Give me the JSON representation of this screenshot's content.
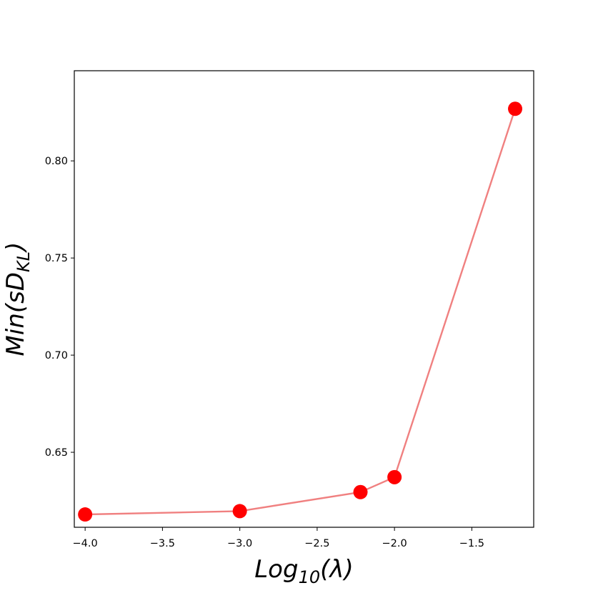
{
  "chart_data": {
    "type": "line",
    "title": "",
    "xlabel": {
      "base": "Log",
      "sub": "10",
      "rest": "(λ)"
    },
    "ylabel": {
      "base": "Min(sD",
      "sub": "KL",
      "rest": ")"
    },
    "xlim": [
      -4.07,
      -1.1
    ],
    "ylim": [
      0.6114,
      0.8464
    ],
    "xticks": [
      -4.0,
      -3.5,
      -3.0,
      -2.5,
      -2.0,
      -1.5
    ],
    "xtick_labels": [
      "−4.0",
      "−3.5",
      "−3.0",
      "−2.5",
      "−2.0",
      "−1.5"
    ],
    "yticks": [
      0.65,
      0.7,
      0.75,
      0.8
    ],
    "ytick_labels": [
      "0.65",
      "0.70",
      "0.75",
      "0.80"
    ],
    "grid": false,
    "legend": "none",
    "series": [
      {
        "x": [
          -4.0,
          -3.0,
          -2.22,
          -2.0,
          -1.22
        ],
        "y": [
          0.618,
          0.6197,
          0.6295,
          0.6372,
          0.8268
        ],
        "line_color": "#f08080",
        "marker_color": "#ff0000"
      }
    ]
  }
}
